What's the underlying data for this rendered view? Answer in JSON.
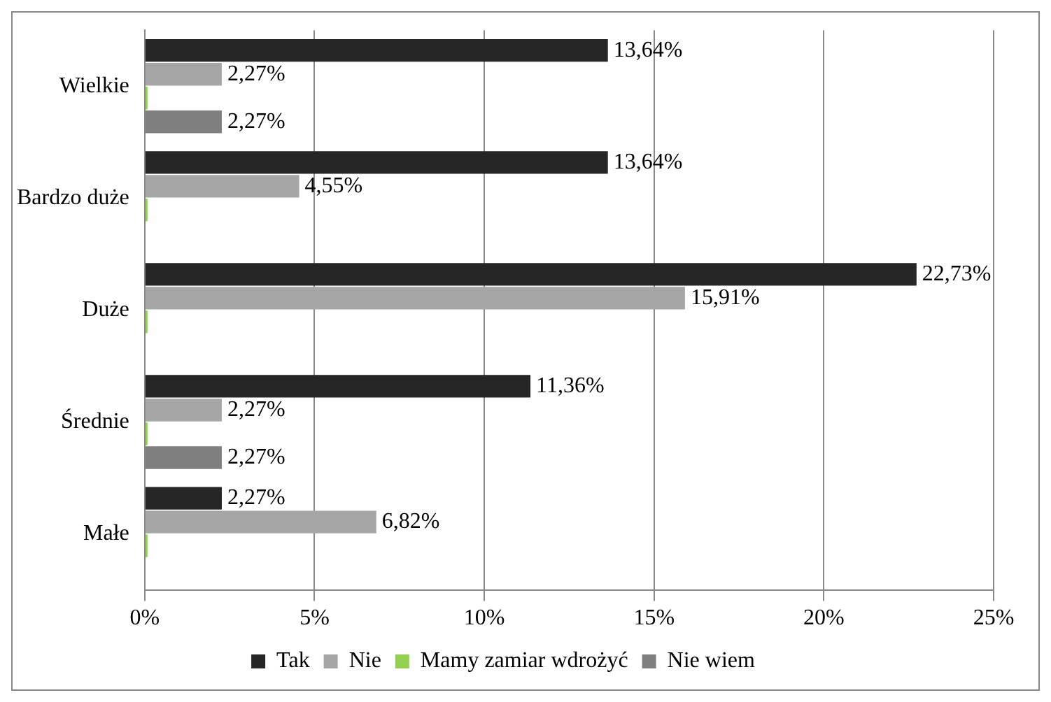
{
  "chart_data": {
    "type": "bar",
    "orientation": "horizontal",
    "categories": [
      "Wielkie",
      "Bardzo duże",
      "Duże",
      "Średnie",
      "Małe"
    ],
    "series": [
      {
        "name": "Tak",
        "color": "#262626",
        "values": [
          13.64,
          13.64,
          22.73,
          11.36,
          2.27
        ],
        "value_labels": [
          "13,64%",
          "13,64%",
          "22,73%",
          "11,36%",
          "2,27%"
        ]
      },
      {
        "name": "Nie",
        "color": "#a6a6a6",
        "values": [
          2.27,
          4.55,
          15.91,
          2.27,
          6.82
        ],
        "value_labels": [
          "2,27%",
          "4,55%",
          "15,91%",
          "2,27%",
          "6,82%"
        ]
      },
      {
        "name": "Mamy zamiar wdrożyć",
        "color": "#92d050",
        "values": [
          0,
          0,
          0,
          0,
          0
        ],
        "value_labels": [
          null,
          null,
          null,
          null,
          null
        ]
      },
      {
        "name": "Nie wiem",
        "color": "#7f7f7f",
        "values": [
          2.27,
          null,
          null,
          2.27,
          null
        ],
        "value_labels": [
          "2,27%",
          null,
          null,
          "2,27%",
          null
        ]
      }
    ],
    "xlim": [
      0,
      25
    ],
    "xticks": [
      {
        "value": 0,
        "label": "0%"
      },
      {
        "value": 5,
        "label": "5%"
      },
      {
        "value": 10,
        "label": "10%"
      },
      {
        "value": 15,
        "label": "15%"
      },
      {
        "value": 20,
        "label": "20%"
      },
      {
        "value": 25,
        "label": "25%"
      }
    ],
    "grid": "x",
    "legend": "bottom"
  }
}
